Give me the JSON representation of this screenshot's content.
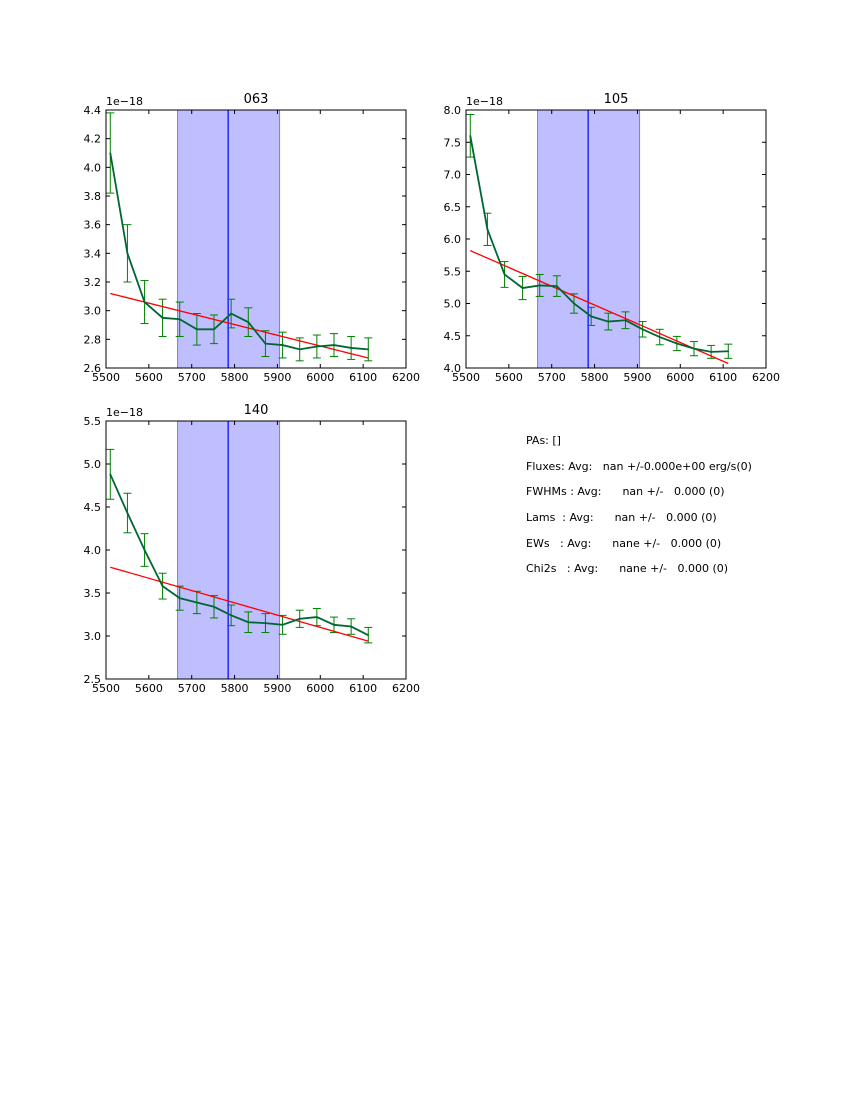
{
  "chart_data": [
    {
      "type": "line",
      "title": "063",
      "offset_label": "1e−18",
      "xlim": [
        5500,
        6200
      ],
      "ylim": [
        2.6,
        4.4
      ],
      "xticks": [
        5500,
        5600,
        5700,
        5800,
        5900,
        6000,
        6100,
        6200
      ],
      "yticks": [
        "2.6",
        "2.8",
        "3.0",
        "3.2",
        "3.4",
        "3.6",
        "3.8",
        "4.0",
        "4.2",
        "4.4"
      ],
      "x": [
        5510,
        5550,
        5590,
        5632,
        5672,
        5712,
        5752,
        5792,
        5832,
        5872,
        5912,
        5952,
        5992,
        6032,
        6072,
        6112
      ],
      "series": [
        {
          "name": "flux",
          "color": "#006633",
          "errcolor": "#008000",
          "values": [
            4.1,
            3.4,
            3.06,
            2.95,
            2.94,
            2.87,
            2.87,
            2.98,
            2.92,
            2.77,
            2.76,
            2.73,
            2.75,
            2.76,
            2.74,
            2.73
          ],
          "errors": [
            0.28,
            0.2,
            0.15,
            0.13,
            0.12,
            0.11,
            0.1,
            0.1,
            0.1,
            0.09,
            0.09,
            0.08,
            0.08,
            0.08,
            0.08,
            0.08
          ]
        },
        {
          "name": "continuum fit",
          "color": "#ff0000",
          "x": [
            5510,
            6112
          ],
          "values": [
            3.12,
            2.67
          ]
        }
      ],
      "band": [
        5667,
        5905
      ],
      "vline": 5785
    },
    {
      "type": "line",
      "title": "105",
      "offset_label": "1e−18",
      "xlim": [
        5500,
        6200
      ],
      "ylim": [
        4.0,
        8.0
      ],
      "xticks": [
        5500,
        5600,
        5700,
        5800,
        5900,
        6000,
        6100,
        6200
      ],
      "yticks": [
        "4.0",
        "4.5",
        "5.0",
        "5.5",
        "6.0",
        "6.5",
        "7.0",
        "7.5",
        "8.0"
      ],
      "x": [
        5510,
        5550,
        5590,
        5632,
        5672,
        5712,
        5752,
        5792,
        5832,
        5872,
        5912,
        5952,
        5992,
        6032,
        6072,
        6112
      ],
      "series": [
        {
          "name": "flux",
          "color": "#006633",
          "errcolor": "#008000",
          "values": [
            7.6,
            6.15,
            5.45,
            5.24,
            5.28,
            5.27,
            5.0,
            4.8,
            4.72,
            4.74,
            4.6,
            4.48,
            4.38,
            4.3,
            4.25,
            4.26
          ],
          "errors": [
            0.33,
            0.25,
            0.2,
            0.18,
            0.17,
            0.16,
            0.15,
            0.14,
            0.13,
            0.13,
            0.12,
            0.12,
            0.11,
            0.11,
            0.1,
            0.11
          ]
        },
        {
          "name": "continuum fit",
          "color": "#ff0000",
          "x": [
            5510,
            6112
          ],
          "values": [
            5.82,
            4.07
          ]
        }
      ],
      "band": [
        5667,
        5905
      ],
      "vline": 5785
    },
    {
      "type": "line",
      "title": "140",
      "offset_label": "1e−18",
      "xlim": [
        5500,
        6200
      ],
      "ylim": [
        2.5,
        5.5
      ],
      "xticks": [
        5500,
        5600,
        5700,
        5800,
        5900,
        6000,
        6100,
        6200
      ],
      "yticks": [
        "2.5",
        "3.0",
        "3.5",
        "4.0",
        "4.5",
        "5.0",
        "5.5"
      ],
      "x": [
        5510,
        5550,
        5590,
        5632,
        5672,
        5712,
        5752,
        5792,
        5832,
        5872,
        5912,
        5952,
        5992,
        6032,
        6072,
        6112
      ],
      "series": [
        {
          "name": "flux",
          "color": "#006633",
          "errcolor": "#008000",
          "values": [
            4.88,
            4.43,
            4.0,
            3.58,
            3.44,
            3.39,
            3.34,
            3.24,
            3.16,
            3.15,
            3.13,
            3.2,
            3.22,
            3.13,
            3.11,
            3.01
          ],
          "errors": [
            0.29,
            0.23,
            0.19,
            0.15,
            0.14,
            0.13,
            0.13,
            0.12,
            0.12,
            0.11,
            0.11,
            0.1,
            0.1,
            0.09,
            0.09,
            0.09
          ]
        },
        {
          "name": "continuum fit",
          "color": "#ff0000",
          "x": [
            5510,
            6112
          ],
          "values": [
            3.8,
            2.94
          ]
        }
      ],
      "band": [
        5667,
        5905
      ],
      "vline": 5785
    }
  ],
  "stats": [
    "PAs: []",
    "Fluxes: Avg:   nan +/-0.000e+00 erg/s(0)",
    "FWHMs : Avg:      nan +/-   0.000 (0)",
    "Lams  : Avg:      nan +/-   0.000 (0)",
    "EWs   : Avg:      nane +/-   0.000 (0)",
    "Chi2s   : Avg:      nane +/-   0.000 (0)"
  ]
}
